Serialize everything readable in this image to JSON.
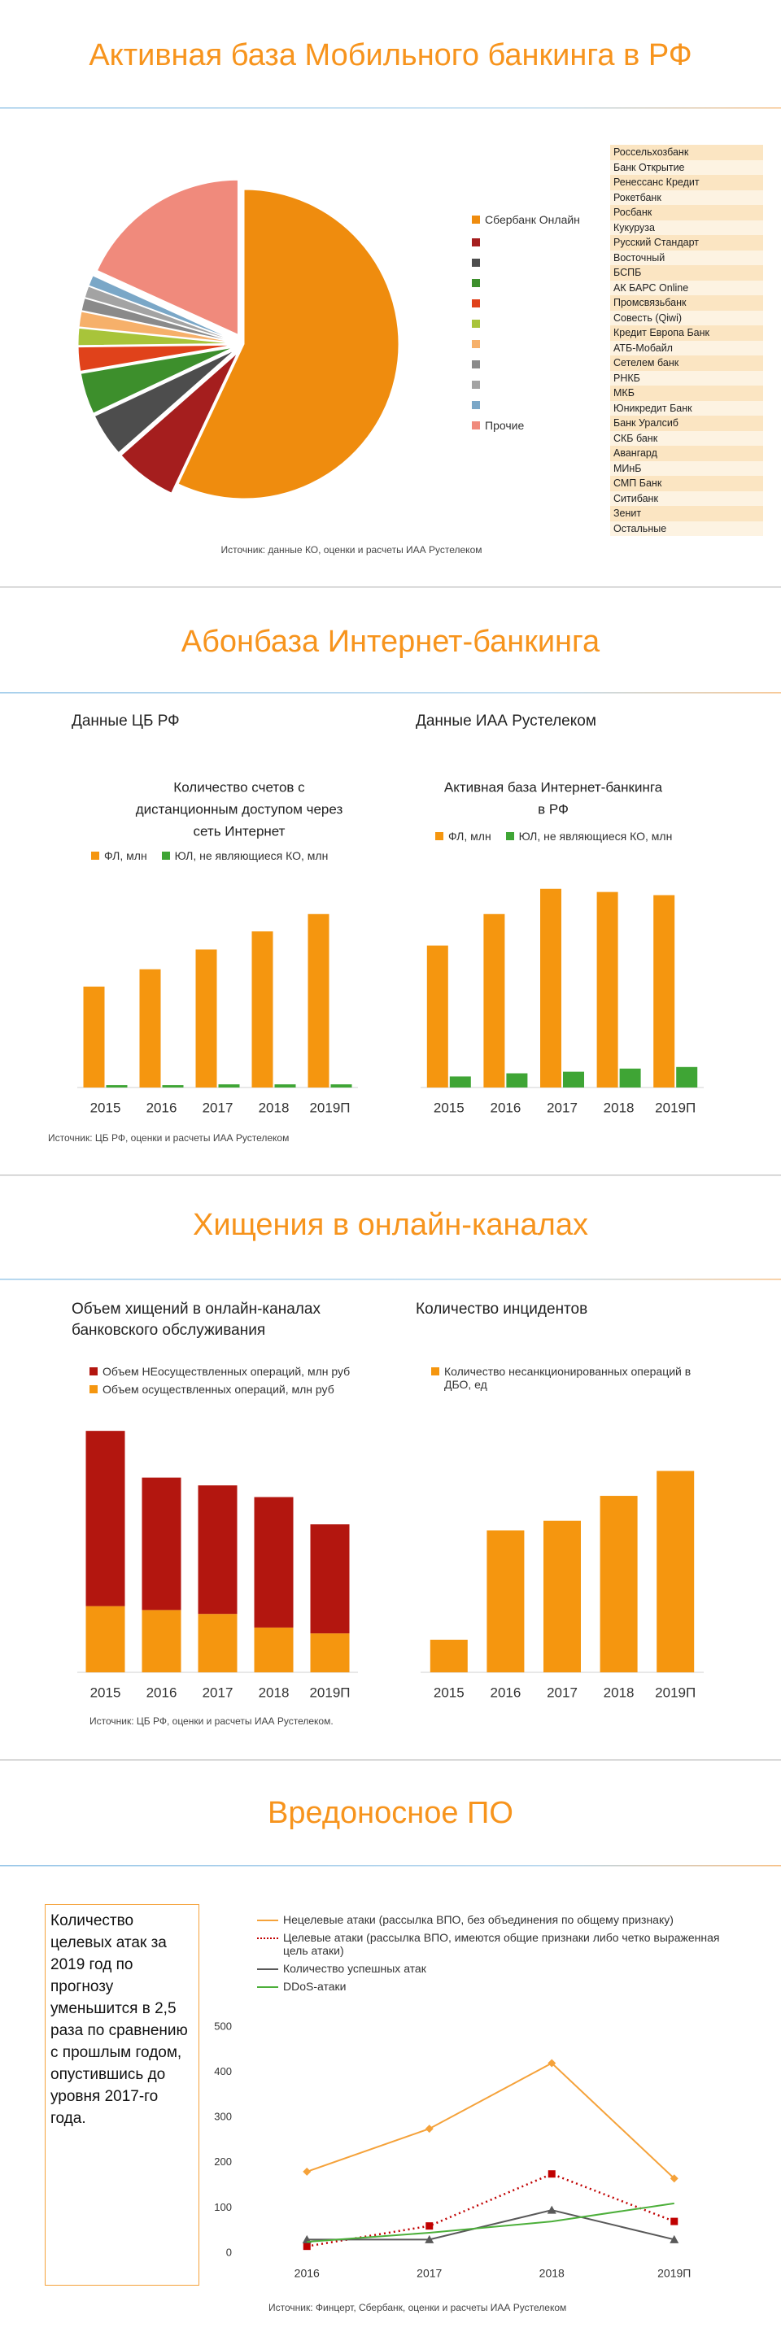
{
  "sections": [
    {
      "title": "Активная база Мобильного банкинга в РФ",
      "source": "Источник: данные КО, оценки и расчеты ИАА Рустелеком",
      "table_rows": [
        "Россельхозбанк",
        "Банк Открытие",
        "Ренессанс Кредит",
        "Рокетбанк",
        "Росбанк",
        "Кукуруза",
        "Русский Стандарт",
        "Восточный",
        "БСПБ",
        "АК БАРС Online",
        "Промсвязьбанк",
        "Совесть (Qiwi)",
        "Кредит Европа Банк",
        "АТБ-Мобайл",
        "Сетелем банк",
        "РНКБ",
        "МКБ",
        "Юникредит Банк",
        "Банк Уралсиб",
        "СКБ банк",
        "Авангард",
        "МИнБ",
        "СМП Банк",
        "Ситибанк",
        "Зенит",
        "Остальные"
      ]
    },
    {
      "title": "Абонбаза Интернет-банкинга",
      "subheads": [
        "Данные ЦБ РФ",
        "Данные ИАА Рустелеком"
      ],
      "source": "Источник: ЦБ РФ, оценки и расчеты ИАА Рустелеком"
    },
    {
      "title": "Хищения в онлайн-каналах",
      "subheads": [
        "Объем хищений в онлайн-каналах банковского обслуживания",
        "Количество инцидентов"
      ],
      "source": "Источник: ЦБ РФ, оценки и расчеты ИАА Рустелеком."
    },
    {
      "title": "Вредоносное ПО",
      "note": "Количество целевых атак за 2019 год по прогнозу уменьшится в 2,5 раза по сравнению с прошлым годом, опустившись до уровня 2017-го года.",
      "source": "Источник: Финцерт, Сбербанк, оценки и расчеты ИАА Рустелеком"
    }
  ],
  "chart_data": [
    {
      "type": "pie",
      "categories": [
        "Сбербанк Онлайн",
        null,
        null,
        null,
        null,
        null,
        null,
        null,
        null,
        null,
        "Прочие"
      ],
      "values": [
        57,
        6.5,
        4.5,
        4.3,
        2.5,
        1.8,
        1.6,
        1.3,
        1.2,
        1.1,
        18.2
      ],
      "colors": [
        "#ef8c0e",
        "#a51e1e",
        "#4d4d4d",
        "#3d8f2c",
        "#e0421b",
        "#a8c43a",
        "#f6b06a",
        "#8a8a8a",
        "#a3a3a3",
        "#7aa7c7",
        "#f08a7c"
      ],
      "legend": "right"
    },
    {
      "type": "bar",
      "title": [
        "Количество счетов с",
        "дистанционным доступом через",
        "сеть Интернет"
      ],
      "categories": [
        "2015",
        "2016",
        "2017",
        "2018",
        "2019П"
      ],
      "series": [
        {
          "name": "ФЛ, млн",
          "color": "#f5960f",
          "values": [
            128,
            150,
            175,
            198,
            220
          ]
        },
        {
          "name": "ЮЛ, не являющиеся КО, млн",
          "color": "#3fa535",
          "values": [
            3,
            3,
            4,
            4,
            4
          ]
        }
      ],
      "ylim": [
        0,
        260
      ]
    },
    {
      "type": "bar",
      "title": [
        "Активная база Интернет-банкинга",
        "в РФ"
      ],
      "categories": [
        "2015",
        "2016",
        "2017",
        "2018",
        "2019П"
      ],
      "series": [
        {
          "name": "ФЛ, млн",
          "color": "#f5960f",
          "values": [
            45,
            55,
            63,
            62,
            61
          ]
        },
        {
          "name": "ЮЛ, не являющиеся КО, млн",
          "color": "#3fa535",
          "values": [
            3.5,
            4.5,
            5,
            6,
            6.5
          ]
        }
      ],
      "ylim": [
        0,
        65
      ]
    },
    {
      "type": "bar",
      "stacked": true,
      "categories": [
        "2015",
        "2016",
        "2017",
        "2018",
        "2019П"
      ],
      "series": [
        {
          "name": "Объем НЕосуществленных операций, млн руб",
          "color": "#b3160f",
          "values": [
            4500,
            3400,
            3300,
            3350,
            2800
          ]
        },
        {
          "name": "Объем осуществленных операций, млн руб",
          "color": "#f5960f",
          "values": [
            1700,
            1600,
            1500,
            1150,
            1000
          ]
        }
      ],
      "ylim": [
        0,
        6600
      ]
    },
    {
      "type": "bar",
      "categories": [
        "2015",
        "2016",
        "2017",
        "2018",
        "2019П"
      ],
      "series": [
        {
          "name": "Количество несанкционированных операций в ДБО, ед",
          "color": "#f5960f",
          "values": [
            85000,
            370000,
            395000,
            460000,
            525000
          ]
        }
      ],
      "ylim": [
        0,
        670000
      ]
    },
    {
      "type": "line",
      "categories": [
        "2016",
        "2017",
        "2018",
        "2019П"
      ],
      "series": [
        {
          "name": "Нецелевые атаки (рассылка ВПО, без объединения по общему признаку)",
          "color": "#f5a23a",
          "marker": "diamond",
          "line_style": "solid",
          "values": [
            180,
            275,
            420,
            165
          ]
        },
        {
          "name": "Целевые атаки (рассылка ВПО, имеются общие признаки либо четко выраженная цель атаки)",
          "color": "#c00000",
          "marker": "square",
          "line_style": "dotted",
          "values": [
            15,
            60,
            175,
            70
          ]
        },
        {
          "name": "Количество успешных атак",
          "color": "#595959",
          "marker": "triangle",
          "line_style": "solid",
          "values": [
            30,
            30,
            95,
            30
          ]
        },
        {
          "name": "DDoS-атаки",
          "color": "#4caf3a",
          "marker": "none",
          "line_style": "solid",
          "values": [
            25,
            45,
            70,
            110
          ]
        }
      ],
      "ylim": [
        0,
        500
      ],
      "yticks": [
        0,
        100,
        200,
        300,
        400,
        500
      ]
    }
  ]
}
